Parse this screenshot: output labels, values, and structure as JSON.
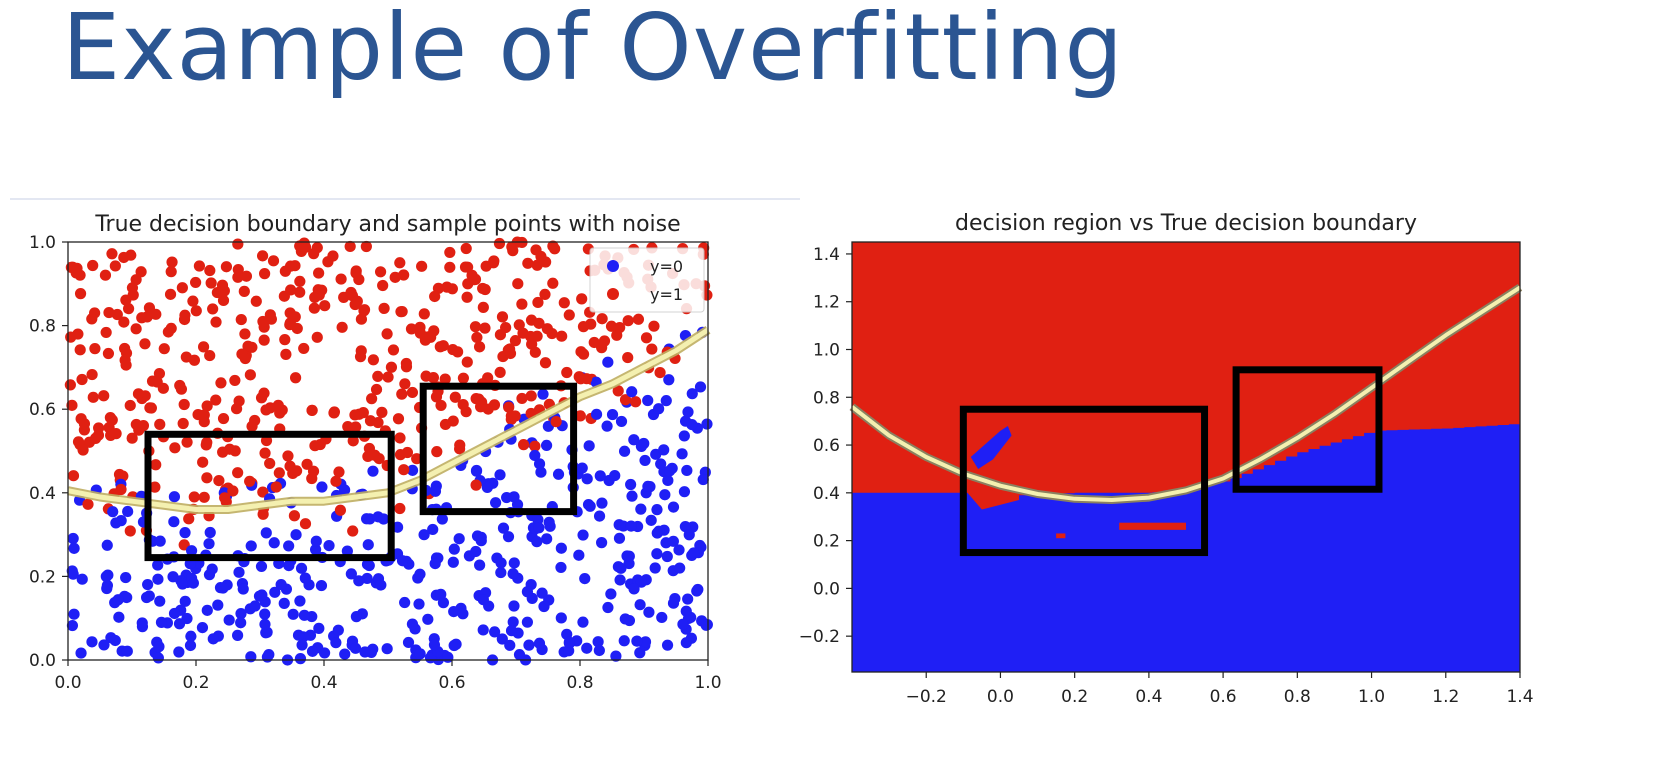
{
  "slide": {
    "title": "Example of Overfitting"
  },
  "colors": {
    "class0": "#1f1ff5",
    "class1": "#e02012",
    "title": "#2b5592",
    "boundary": "#f4f0b0"
  },
  "chart_data": [
    {
      "type": "scatter",
      "title": "True decision boundary  and sample points with noise",
      "xlim": [
        0,
        1
      ],
      "ylim": [
        0,
        1
      ],
      "xticks": [
        "0.0",
        "0.2",
        "0.4",
        "0.6",
        "0.8",
        "1.0"
      ],
      "yticks": [
        "0.0",
        "0.2",
        "0.4",
        "0.6",
        "0.8",
        "1.0"
      ],
      "grid": false,
      "legend": {
        "placement": "top-right",
        "entries": [
          "y=0",
          "y=1"
        ]
      },
      "boundary": {
        "x": [
          0,
          0.05,
          0.1,
          0.15,
          0.2,
          0.25,
          0.3,
          0.35,
          0.4,
          0.45,
          0.5,
          0.55,
          0.6,
          0.65,
          0.7,
          0.75,
          0.8,
          0.85,
          0.9,
          0.95,
          1.0
        ],
        "y": [
          0.405,
          0.39,
          0.38,
          0.37,
          0.36,
          0.36,
          0.37,
          0.38,
          0.38,
          0.39,
          0.4,
          0.43,
          0.47,
          0.51,
          0.55,
          0.59,
          0.63,
          0.66,
          0.7,
          0.74,
          0.79
        ]
      },
      "series": [
        {
          "name": "y=0",
          "color": "#1f1ff5",
          "count": 480,
          "rule": "below_boundary_with_noise"
        },
        {
          "name": "y=1",
          "color": "#e02012",
          "count": 480,
          "rule": "above_boundary_with_noise"
        }
      ],
      "annotations": [
        {
          "type": "rectangle",
          "x": [
            0.125,
            0.505
          ],
          "y": [
            0.245,
            0.54
          ]
        },
        {
          "type": "rectangle",
          "x": [
            0.555,
            0.79
          ],
          "y": [
            0.355,
            0.655
          ]
        }
      ]
    },
    {
      "type": "heatmap",
      "title": "decision region vs True decision boundary",
      "xlim": [
        -0.4,
        1.4
      ],
      "ylim": [
        -0.35,
        1.45
      ],
      "xticks": [
        "−0.2",
        "0.0",
        "0.2",
        "0.4",
        "0.6",
        "0.8",
        "1.0",
        "1.2",
        "1.4"
      ],
      "yticks": [
        "−0.2",
        "0.0",
        "0.2",
        "0.4",
        "0.6",
        "0.8",
        "1.0",
        "1.2",
        "1.4"
      ],
      "grid": false,
      "regions": {
        "above": "class1",
        "below": "class0"
      },
      "region_edge": {
        "x": [
          -0.4,
          -0.1,
          0.05,
          0.2,
          0.4,
          0.6,
          0.8,
          1.0,
          1.2,
          1.4
        ],
        "y": [
          0.4,
          0.4,
          0.39,
          0.4,
          0.4,
          0.45,
          0.57,
          0.66,
          0.67,
          0.69
        ]
      },
      "boundary": {
        "x": [
          -0.4,
          -0.3,
          -0.2,
          -0.1,
          0,
          0.1,
          0.2,
          0.3,
          0.4,
          0.5,
          0.6,
          0.7,
          0.8,
          0.9,
          1.0,
          1.1,
          1.2,
          1.3,
          1.4
        ],
        "y": [
          0.76,
          0.64,
          0.55,
          0.48,
          0.43,
          0.395,
          0.375,
          0.37,
          0.38,
          0.41,
          0.46,
          0.54,
          0.63,
          0.73,
          0.84,
          0.95,
          1.06,
          1.16,
          1.26
        ]
      },
      "annotations": [
        {
          "type": "rectangle",
          "x": [
            -0.1,
            0.55
          ],
          "y": [
            0.15,
            0.75
          ]
        },
        {
          "type": "rectangle",
          "x": [
            0.635,
            1.02
          ],
          "y": [
            0.415,
            0.915
          ]
        }
      ]
    }
  ]
}
